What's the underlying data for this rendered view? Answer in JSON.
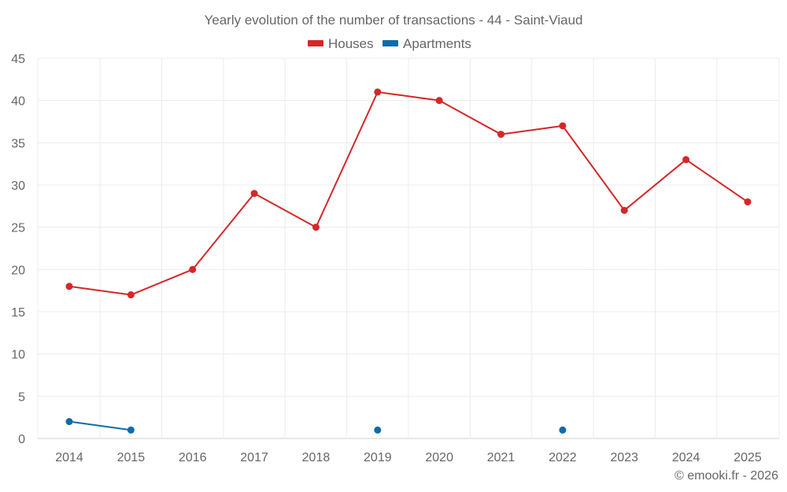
{
  "chart_data": {
    "type": "line",
    "title": "Yearly evolution of the number of transactions - 44 - Saint-Viaud",
    "categories": [
      "2014",
      "2015",
      "2016",
      "2017",
      "2018",
      "2019",
      "2020",
      "2021",
      "2022",
      "2023",
      "2024",
      "2025"
    ],
    "ylim": [
      0,
      45
    ],
    "yticks": [
      0,
      5,
      10,
      15,
      20,
      25,
      30,
      35,
      40,
      45
    ],
    "ytick_labels": [
      "0",
      "5",
      "10",
      "15",
      "20",
      "25",
      "30",
      "35",
      "40",
      "45"
    ],
    "grid": true,
    "legend_position": "top-center",
    "xlabel": "",
    "ylabel": "",
    "series": [
      {
        "name": "Houses",
        "color": "#d62728",
        "values": [
          18,
          17,
          20,
          29,
          25,
          41,
          40,
          36,
          37,
          27,
          33,
          28
        ]
      },
      {
        "name": "Apartments",
        "color": "#0f6ba8",
        "values": [
          2,
          1,
          null,
          null,
          null,
          1,
          null,
          null,
          1,
          null,
          null,
          null
        ]
      }
    ]
  },
  "footer": {
    "copyright": "© emooki.fr - 2026"
  }
}
